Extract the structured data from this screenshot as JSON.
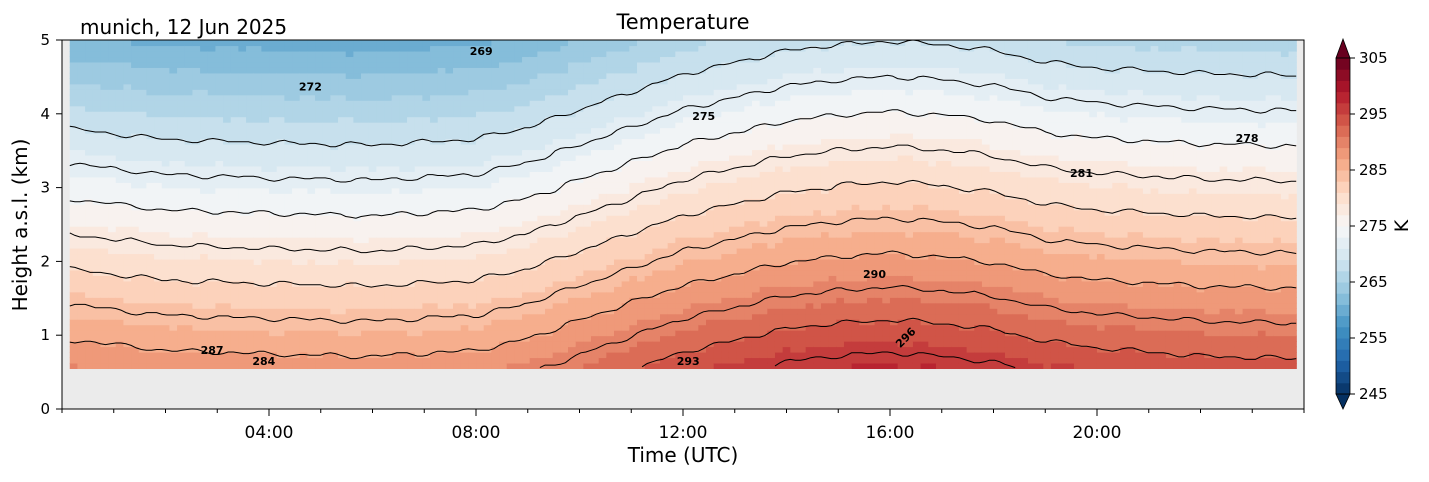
{
  "figure": {
    "station_label": "munich, 12 Jun 2025"
  },
  "chart_data": {
    "type": "heatmap",
    "title": "Temperature",
    "xlabel": "Time (UTC)",
    "ylabel": "Height a.s.l. (km)",
    "x_unit": "hours UTC",
    "xlim": [
      0,
      24
    ],
    "ylim": [
      0,
      5
    ],
    "x_ticks": [
      {
        "value": 4,
        "label": "04:00"
      },
      {
        "value": 8,
        "label": "08:00"
      },
      {
        "value": 12,
        "label": "12:00"
      },
      {
        "value": 16,
        "label": "16:00"
      },
      {
        "value": 20,
        "label": "20:00"
      }
    ],
    "y_ticks": [
      {
        "value": 0,
        "label": "0"
      },
      {
        "value": 1,
        "label": "1"
      },
      {
        "value": 2,
        "label": "2"
      },
      {
        "value": 3,
        "label": "3"
      },
      {
        "value": 4,
        "label": "4"
      },
      {
        "value": 5,
        "label": "5"
      }
    ],
    "data_bottom_height_km": 0.55,
    "no_data_color": "#ebebeb",
    "colormap": "RdBu_r",
    "colorbar": {
      "label": "K",
      "range": [
        245,
        305
      ],
      "step": 2,
      "extend": "both",
      "ticks": [
        {
          "value": 245,
          "label": "245"
        },
        {
          "value": 255,
          "label": "255"
        },
        {
          "value": 265,
          "label": "265"
        },
        {
          "value": 275,
          "label": "275"
        },
        {
          "value": 285,
          "label": "285"
        },
        {
          "value": 295,
          "label": "295"
        },
        {
          "value": 305,
          "label": "305"
        }
      ]
    },
    "contour_levels": [
      269,
      272,
      275,
      278,
      281,
      284,
      287,
      290,
      293,
      296
    ],
    "contour_labels": [
      {
        "text": "269",
        "x": 8.1,
        "y": 4.85
      },
      {
        "text": "272",
        "x": 4.8,
        "y": 4.37
      },
      {
        "text": "275",
        "x": 12.4,
        "y": 3.97
      },
      {
        "text": "278",
        "x": 22.9,
        "y": 3.67
      },
      {
        "text": "281",
        "x": 19.7,
        "y": 3.2
      },
      {
        "text": "290",
        "x": 15.7,
        "y": 1.83
      },
      {
        "text": "287",
        "x": 2.9,
        "y": 0.8
      },
      {
        "text": "284",
        "x": 3.9,
        "y": 0.65
      },
      {
        "text": "293",
        "x": 12.1,
        "y": 0.65
      },
      {
        "text": "296",
        "x": 16.3,
        "y": 0.97
      }
    ],
    "field_model": {
      "description_of_values": "temperature at height h (km) and time t (h UTC)",
      "surface_temp_by_hour": [
        [
          0,
          289.5
        ],
        [
          2,
          288.5
        ],
        [
          4,
          288.2
        ],
        [
          6,
          288.0
        ],
        [
          8,
          288.5
        ],
        [
          9,
          289.5
        ],
        [
          10,
          291.0
        ],
        [
          11,
          292.5
        ],
        [
          12,
          294.0
        ],
        [
          13,
          295.0
        ],
        [
          14,
          296.0
        ],
        [
          15,
          296.5
        ],
        [
          16,
          296.8
        ],
        [
          17,
          296.5
        ],
        [
          18,
          296.0
        ],
        [
          19,
          295.0
        ],
        [
          20,
          294.5
        ],
        [
          22,
          294.0
        ],
        [
          24,
          293.8
        ]
      ],
      "lapse_rate_K_per_km": 6.3
    }
  }
}
